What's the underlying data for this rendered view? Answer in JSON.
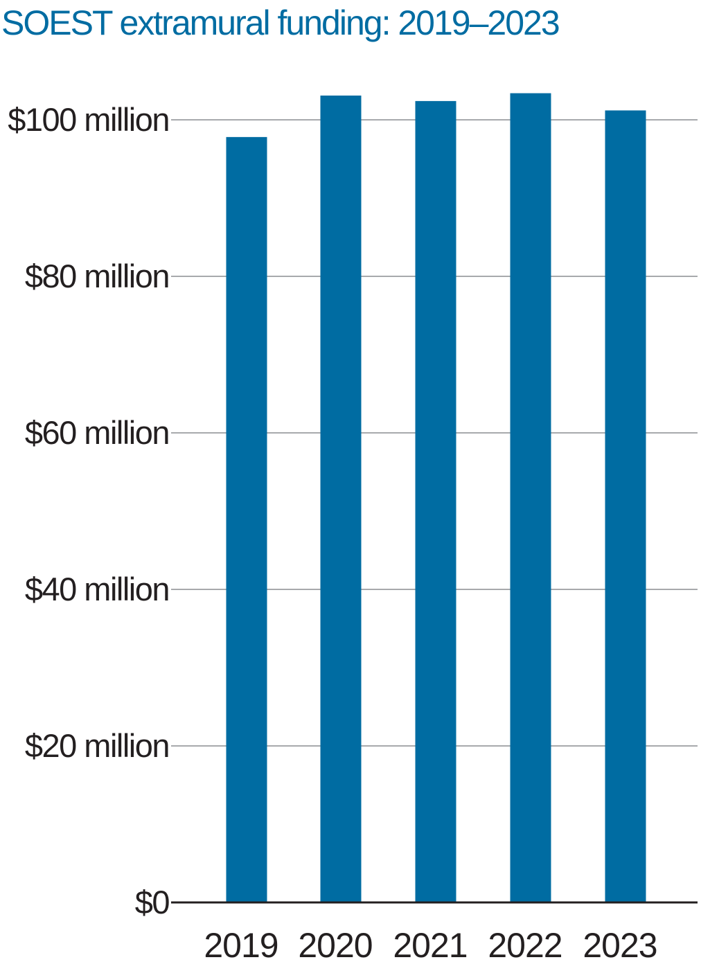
{
  "colors": {
    "title": "#006ca2",
    "bar": "#006ca2",
    "grid": "#a7a9ac",
    "axis": "#231f20",
    "text": "#231f20"
  },
  "chart_data": {
    "type": "bar",
    "title": "SOEST extramural funding: 2019–2023",
    "xlabel": "",
    "ylabel": "",
    "categories": [
      "2019",
      "2020",
      "2021",
      "2022",
      "2023"
    ],
    "values": [
      97.8,
      103.1,
      102.4,
      103.4,
      101.2
    ],
    "unit": "million USD",
    "ylim": [
      0,
      115
    ],
    "yticks": [
      {
        "value": 0,
        "label": "$0"
      },
      {
        "value": 20,
        "label": "$20 million"
      },
      {
        "value": 40,
        "label": "$40 million"
      },
      {
        "value": 60,
        "label": "$60 million"
      },
      {
        "value": 80,
        "label": "$80 million"
      },
      {
        "value": 100,
        "label": "$100 million"
      }
    ],
    "grid": true,
    "legend": "none"
  }
}
